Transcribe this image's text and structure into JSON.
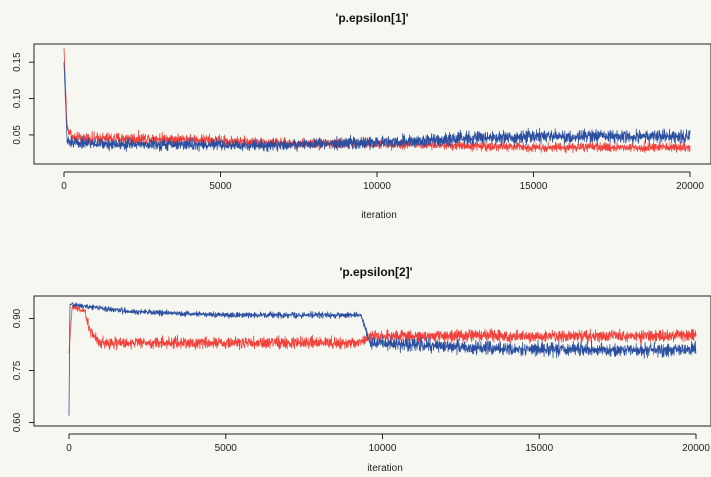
{
  "colors": {
    "series_red": "#f2403a",
    "series_blue": "#2a4fa0"
  },
  "chart_data": [
    {
      "type": "line",
      "title": "'p.epsilon[1]'",
      "xlabel": "iteration",
      "ylabel": "",
      "xlim": [
        -300,
        20300
      ],
      "ylim": [
        0.01,
        0.175
      ],
      "xticks": [
        0,
        5000,
        10000,
        15000,
        20000
      ],
      "xtick_labels": [
        "0",
        "5000",
        "10000",
        "15000",
        "20000"
      ],
      "yticks": [
        0.05,
        0.1,
        0.15
      ],
      "ytick_labels": [
        "0.05",
        "0.10",
        "0.15"
      ],
      "grid": false,
      "series": [
        {
          "color": "red",
          "x": [
            0,
            100,
            300,
            1000,
            3000,
            5000,
            7000,
            10000,
            13000,
            15000,
            17000,
            20000
          ],
          "y": [
            0.17,
            0.06,
            0.045,
            0.045,
            0.045,
            0.042,
            0.038,
            0.038,
            0.035,
            0.033,
            0.033,
            0.033
          ],
          "noise": [
            0,
            0.01,
            0.012,
            0.012,
            0.012,
            0.011,
            0.01,
            0.01,
            0.009,
            0.009,
            0.009,
            0.009
          ]
        },
        {
          "color": "blue",
          "x": [
            0,
            100,
            300,
            1000,
            3000,
            5000,
            7000,
            10000,
            13000,
            15000,
            17000,
            20000
          ],
          "y": [
            0.15,
            0.04,
            0.04,
            0.038,
            0.037,
            0.036,
            0.036,
            0.04,
            0.045,
            0.048,
            0.048,
            0.048
          ],
          "noise": [
            0,
            0.01,
            0.011,
            0.011,
            0.011,
            0.011,
            0.011,
            0.012,
            0.013,
            0.013,
            0.013,
            0.013
          ]
        }
      ]
    },
    {
      "type": "line",
      "title": "'p.epsilon[2]'",
      "xlabel": "iteration",
      "ylabel": "",
      "xlim": [
        -300,
        20300
      ],
      "ylim": [
        0.59,
        0.965
      ],
      "xticks": [
        0,
        5000,
        10000,
        15000,
        20000
      ],
      "xtick_labels": [
        "0",
        "5000",
        "10000",
        "15000",
        "20000"
      ],
      "yticks": [
        0.6,
        0.75,
        0.9
      ],
      "ytick_labels": [
        "0.60",
        "0.75",
        "0.90"
      ],
      "grid": false,
      "series": [
        {
          "color": "red",
          "x": [
            0,
            100,
            500,
            700,
            1000,
            3000,
            5000,
            7000,
            9300,
            9600,
            12000,
            15000,
            17000,
            20000
          ],
          "y": [
            0.8,
            0.935,
            0.92,
            0.86,
            0.83,
            0.83,
            0.83,
            0.83,
            0.83,
            0.85,
            0.85,
            0.85,
            0.85,
            0.85
          ],
          "noise": [
            0,
            0.01,
            0.015,
            0.025,
            0.025,
            0.025,
            0.025,
            0.025,
            0.025,
            0.025,
            0.025,
            0.025,
            0.025,
            0.025
          ]
        },
        {
          "color": "blue",
          "x": [
            0,
            30,
            150,
            1000,
            2000,
            5000,
            7000,
            9300,
            9600,
            12000,
            15000,
            17000,
            20000
          ],
          "y": [
            0.62,
            0.94,
            0.94,
            0.93,
            0.92,
            0.91,
            0.91,
            0.91,
            0.83,
            0.82,
            0.81,
            0.81,
            0.81
          ],
          "noise": [
            0,
            0.005,
            0.01,
            0.01,
            0.012,
            0.012,
            0.012,
            0.012,
            0.025,
            0.028,
            0.03,
            0.03,
            0.03
          ]
        }
      ]
    }
  ]
}
